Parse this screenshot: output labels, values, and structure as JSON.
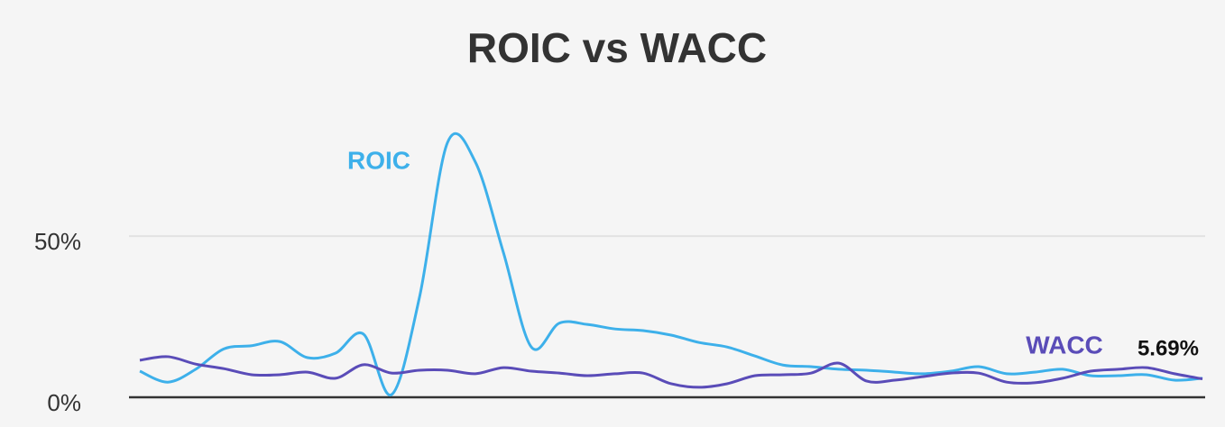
{
  "chart_data": {
    "type": "line",
    "title": "ROIC vs WACC",
    "series": [
      {
        "name": "ROIC",
        "color": "#3db0ea",
        "values": [
          8.1,
          4.7,
          8.7,
          15,
          16,
          17.3,
          12.3,
          13.7,
          19.6,
          0.8,
          31,
          79,
          73,
          45,
          15.6,
          23,
          22.6,
          21.2,
          20.7,
          19.3,
          17,
          15.6,
          12.8,
          10,
          9.5,
          8.7,
          8.4,
          7.8,
          7.3,
          8.1,
          9.5,
          7.3,
          7.8,
          8.7,
          6.7,
          6.7,
          7,
          5.3,
          5.9
        ]
      },
      {
        "name": "WACC",
        "color": "#5a4cb8",
        "values": [
          11.5,
          12.6,
          10.3,
          8.9,
          7,
          7,
          7.8,
          5.9,
          10.1,
          7.5,
          8.4,
          8.4,
          7.3,
          9.2,
          8.1,
          7.5,
          6.7,
          7.3,
          7.5,
          4.2,
          3.1,
          4.2,
          6.7,
          7,
          7.5,
          10.6,
          5,
          5.3,
          6.4,
          7.5,
          7.5,
          4.7,
          4.5,
          5.9,
          8.1,
          8.7,
          9.2,
          7.3,
          5.69
        ],
        "value_labels": [
          null,
          null,
          null,
          null,
          null,
          null,
          null,
          null,
          null,
          null,
          null,
          null,
          null,
          null,
          null,
          null,
          null,
          null,
          null,
          null,
          null,
          null,
          null,
          null,
          null,
          null,
          null,
          null,
          null,
          null,
          null,
          null,
          null,
          null,
          null,
          null,
          null,
          null,
          "5.69%"
        ]
      }
    ],
    "ylim": [
      0,
      85
    ],
    "yticks": [
      {
        "value": 0,
        "label": "0%"
      },
      {
        "value": 50,
        "label": "50%"
      }
    ],
    "grid": true
  }
}
